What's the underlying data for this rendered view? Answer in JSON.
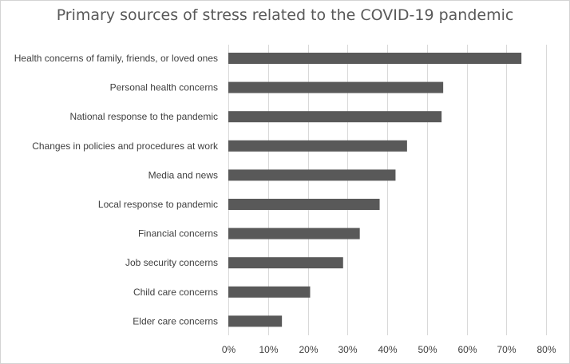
{
  "chart_data": {
    "type": "bar",
    "orientation": "horizontal",
    "title": "Primary sources of stress related to the COVID-19 pandemic",
    "xlabel": "",
    "ylabel": "",
    "xlim": [
      0,
      80
    ],
    "x_ticks": [
      "0%",
      "10%",
      "20%",
      "30%",
      "40%",
      "50%",
      "60%",
      "70%",
      "80%"
    ],
    "grid": "vertical",
    "bar_color": "#595959",
    "categories": [
      "Health concerns of family, friends, or loved ones",
      "Personal health concerns",
      "National response to the pandemic",
      "Changes in policies and procedures at work",
      "Media and news",
      "Local response to pandemic",
      "Financial concerns",
      "Job security concerns",
      "Child care concerns",
      "Elder care concerns"
    ],
    "values": [
      73.8,
      54.1,
      53.7,
      45,
      42.1,
      38.1,
      33.1,
      28.9,
      20.6,
      13.5
    ]
  }
}
